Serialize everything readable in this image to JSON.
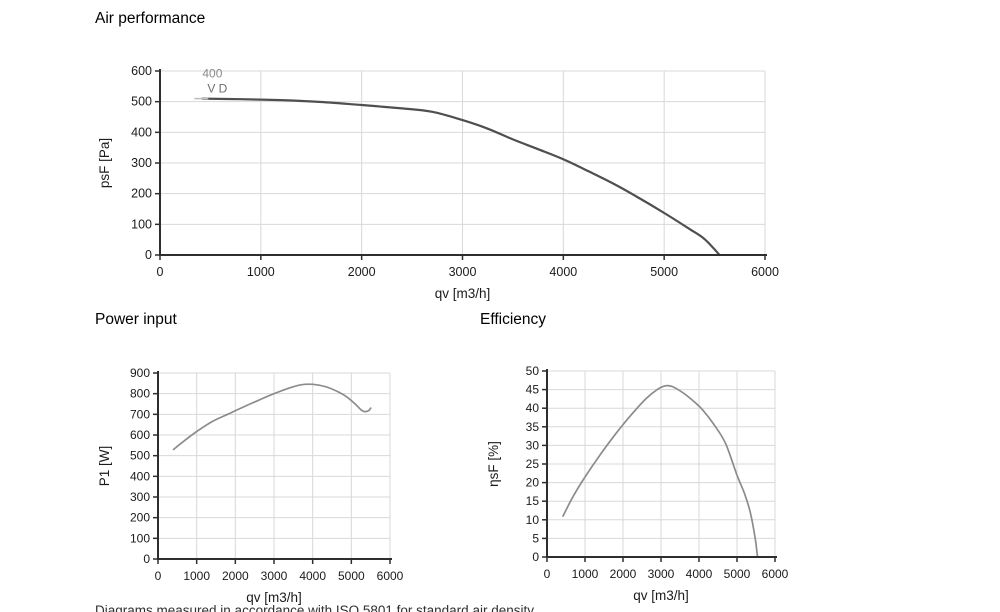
{
  "page": {
    "footer_text": "Diagrams measured in accordance with ISO 5801 for standard air density"
  },
  "colors": {
    "grid": "#d8d8d8",
    "axis": "#2e2e2e",
    "tick_label": "#1b1b1b",
    "axis_label": "#1b1b1b",
    "annotation_top": "#8a8a8a",
    "annotation_bottom": "#6e6e6e",
    "leader": "#bfbfbf",
    "curve_dark": "#4f4f4f",
    "curve_gray": "#8c8c8c"
  },
  "chart_data": [
    {
      "id": "air",
      "type": "line",
      "title": "Air performance",
      "xlabel": "qv [m3/h]",
      "ylabel": "psF [Pa]",
      "xlim": [
        0,
        6000
      ],
      "ylim": [
        0,
        600
      ],
      "xticks": [
        0,
        1000,
        2000,
        3000,
        4000,
        5000,
        6000
      ],
      "yticks": [
        0,
        100,
        200,
        300,
        400,
        500,
        600
      ],
      "grid": true,
      "annotation": {
        "line1": "400",
        "line2": "V D"
      },
      "series": [
        {
          "name": "400 V D",
          "color": "#4f4f4f",
          "points": [
            [
              420,
              510
            ],
            [
              800,
              508
            ],
            [
              1200,
              505
            ],
            [
              1600,
              499
            ],
            [
              2000,
              489
            ],
            [
              2400,
              478
            ],
            [
              2700,
              467
            ],
            [
              3000,
              440
            ],
            [
              3250,
              412
            ],
            [
              3500,
              377
            ],
            [
              3750,
              345
            ],
            [
              4000,
              312
            ],
            [
              4250,
              273
            ],
            [
              4500,
              232
            ],
            [
              4750,
              186
            ],
            [
              5000,
              137
            ],
            [
              5250,
              85
            ],
            [
              5400,
              52
            ],
            [
              5550,
              0
            ]
          ]
        }
      ]
    },
    {
      "id": "power",
      "type": "line",
      "title": "Power input",
      "xlabel": "qv [m3/h]",
      "ylabel": "P1 [W]",
      "xlim": [
        0,
        6000
      ],
      "ylim": [
        0,
        900
      ],
      "xticks": [
        0,
        1000,
        2000,
        3000,
        4000,
        5000,
        6000
      ],
      "yticks": [
        0,
        100,
        200,
        300,
        400,
        500,
        600,
        700,
        800,
        900
      ],
      "grid": true,
      "series": [
        {
          "name": "P1",
          "color": "#8c8c8c",
          "points": [
            [
              400,
              530
            ],
            [
              700,
              575
            ],
            [
              1000,
              617
            ],
            [
              1400,
              665
            ],
            [
              1800,
              700
            ],
            [
              2200,
              735
            ],
            [
              2600,
              768
            ],
            [
              3000,
              800
            ],
            [
              3400,
              828
            ],
            [
              3700,
              843
            ],
            [
              3900,
              846
            ],
            [
              4100,
              843
            ],
            [
              4400,
              830
            ],
            [
              4700,
              805
            ],
            [
              4900,
              782
            ],
            [
              5100,
              750
            ],
            [
              5250,
              722
            ],
            [
              5350,
              713
            ],
            [
              5450,
              718
            ],
            [
              5500,
              730
            ]
          ]
        }
      ]
    },
    {
      "id": "eff",
      "type": "line",
      "title": "Efficiency",
      "xlabel": "qv [m3/h]",
      "ylabel": "ηsF [%]",
      "xlim": [
        0,
        6000
      ],
      "ylim": [
        0,
        50
      ],
      "xticks": [
        0,
        1000,
        2000,
        3000,
        4000,
        5000,
        6000
      ],
      "yticks": [
        0,
        5,
        10,
        15,
        20,
        25,
        30,
        35,
        40,
        45,
        50
      ],
      "grid": true,
      "series": [
        {
          "name": "etasF",
          "color": "#8c8c8c",
          "points": [
            [
              420,
              11
            ],
            [
              700,
              16.5
            ],
            [
              1000,
              21.5
            ],
            [
              1400,
              27.5
            ],
            [
              1800,
              33
            ],
            [
              2200,
              38
            ],
            [
              2600,
              42.5
            ],
            [
              2900,
              45
            ],
            [
              3100,
              46
            ],
            [
              3300,
              45.8
            ],
            [
              3600,
              44
            ],
            [
              3900,
              41.5
            ],
            [
              4100,
              39.5
            ],
            [
              4400,
              35.5
            ],
            [
              4700,
              30.5
            ],
            [
              5000,
              22
            ],
            [
              5200,
              17
            ],
            [
              5350,
              12
            ],
            [
              5480,
              5
            ],
            [
              5540,
              0
            ]
          ]
        }
      ]
    }
  ]
}
